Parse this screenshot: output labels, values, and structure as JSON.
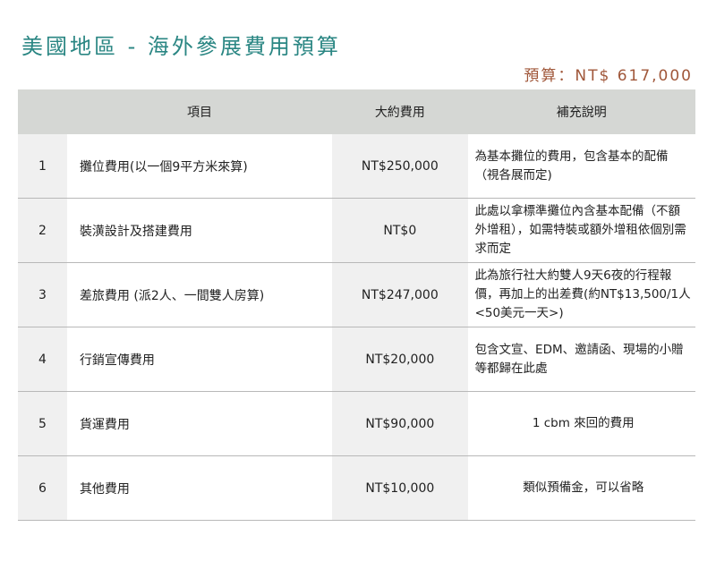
{
  "title": "美國地區 - 海外參展費用預算",
  "budget": "預算：NT$ 617,000",
  "colors": {
    "title": "#2a8683",
    "budget": "#a0573a",
    "header_bg": "#d5d7d4"
  },
  "columns": {
    "number": "",
    "item": "項目",
    "cost": "大約費用",
    "note": "補充說明"
  },
  "rows": [
    {
      "no": "1",
      "item": "攤位費用(以一個9平方米來算)",
      "cost": "NT$250,000",
      "note": "為基本攤位的費用，包含基本的配備（視各展而定)"
    },
    {
      "no": "2",
      "item": "裝潢設計及搭建費用",
      "cost": "NT$0",
      "note": "此處以拿標準攤位內含基本配備（不額外增租），如需特裝或額外增租依個別需求而定"
    },
    {
      "no": "3",
      "item": "差旅費用 (派2人、一間雙人房算)",
      "cost": "NT$247,000",
      "note": "此為旅行社大約雙人9天6夜的行程報價，再加上的出差費(約NT$13,500/1人 <50美元一天>)"
    },
    {
      "no": "4",
      "item": "行銷宣傳費用",
      "cost": "NT$20,000",
      "note": "包含文宣、EDM、邀請函、現場的小贈等都歸在此處"
    },
    {
      "no": "5",
      "item": "貨運費用",
      "cost": "NT$90,000",
      "note": "1 cbm 來回的費用"
    },
    {
      "no": "6",
      "item": "其他費用",
      "cost": "NT$10,000",
      "note": "類似預備金，可以省略"
    }
  ]
}
